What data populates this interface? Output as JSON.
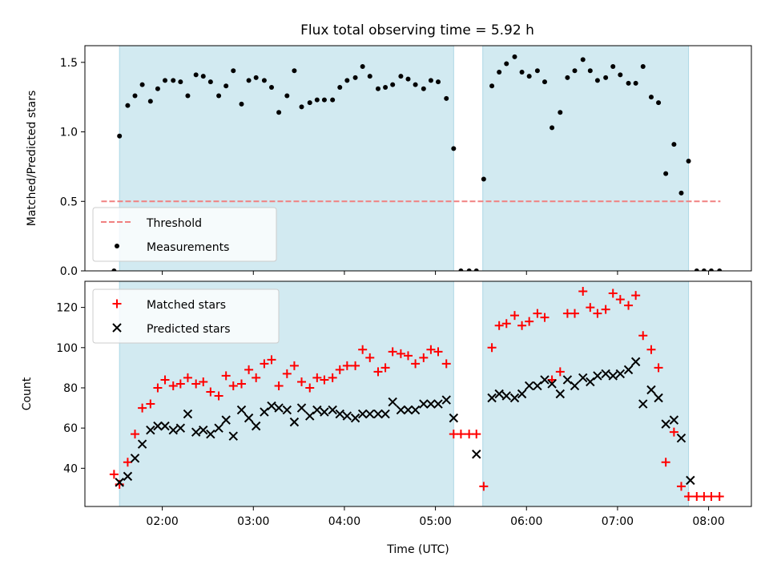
{
  "title": "Flux total observing time = 5.92 h",
  "colors": {
    "band": "#add8e6",
    "threshold": "#f08080",
    "measurements": "#000000",
    "matched": "#ff0000",
    "predicted": "#000000"
  },
  "chart_data": [
    {
      "type": "scatter",
      "panel": "top",
      "ylabel": "Matched/Predicted stars",
      "xlabel": "",
      "x_unit": "hours UTC",
      "xlim": [
        1.15,
        8.47
      ],
      "ylim": [
        0.0,
        1.62
      ],
      "xticks": [
        {
          "value": 2,
          "label": "02:00"
        },
        {
          "value": 3,
          "label": "03:00"
        },
        {
          "value": 4,
          "label": "04:00"
        },
        {
          "value": 5,
          "label": "05:00"
        },
        {
          "value": 6,
          "label": "06:00"
        },
        {
          "value": 7,
          "label": "07:00"
        },
        {
          "value": 8,
          "label": "08:00"
        }
      ],
      "yticks": [
        {
          "value": 0.0,
          "label": "0.0"
        },
        {
          "value": 0.5,
          "label": "0.5"
        },
        {
          "value": 1.0,
          "label": "1.0"
        },
        {
          "value": 1.5,
          "label": "1.5"
        }
      ],
      "show_xtick_labels": false,
      "bands": [
        [
          1.53,
          5.2
        ],
        [
          5.52,
          7.78
        ]
      ],
      "threshold": {
        "name": "Threshold",
        "value": 0.5,
        "x": [
          1.33,
          8.13
        ]
      },
      "legend": {
        "position": "lower-left",
        "entries": [
          "Threshold",
          "Measurements"
        ]
      },
      "series": [
        {
          "name": "Measurements",
          "points": [
            [
              1.47,
              0.0
            ],
            [
              1.53,
              0.97
            ],
            [
              1.62,
              1.19
            ],
            [
              1.7,
              1.26
            ],
            [
              1.78,
              1.34
            ],
            [
              1.87,
              1.22
            ],
            [
              1.95,
              1.31
            ],
            [
              2.03,
              1.37
            ],
            [
              2.12,
              1.37
            ],
            [
              2.2,
              1.36
            ],
            [
              2.28,
              1.26
            ],
            [
              2.37,
              1.41
            ],
            [
              2.45,
              1.4
            ],
            [
              2.53,
              1.36
            ],
            [
              2.62,
              1.26
            ],
            [
              2.7,
              1.33
            ],
            [
              2.78,
              1.44
            ],
            [
              2.87,
              1.2
            ],
            [
              2.95,
              1.37
            ],
            [
              3.03,
              1.39
            ],
            [
              3.12,
              1.37
            ],
            [
              3.2,
              1.32
            ],
            [
              3.28,
              1.14
            ],
            [
              3.37,
              1.26
            ],
            [
              3.45,
              1.44
            ],
            [
              3.53,
              1.18
            ],
            [
              3.62,
              1.21
            ],
            [
              3.7,
              1.23
            ],
            [
              3.78,
              1.23
            ],
            [
              3.87,
              1.23
            ],
            [
              3.95,
              1.32
            ],
            [
              4.03,
              1.37
            ],
            [
              4.12,
              1.39
            ],
            [
              4.2,
              1.47
            ],
            [
              4.28,
              1.4
            ],
            [
              4.37,
              1.31
            ],
            [
              4.45,
              1.32
            ],
            [
              4.53,
              1.34
            ],
            [
              4.62,
              1.4
            ],
            [
              4.7,
              1.38
            ],
            [
              4.78,
              1.34
            ],
            [
              4.87,
              1.31
            ],
            [
              4.95,
              1.37
            ],
            [
              5.03,
              1.36
            ],
            [
              5.12,
              1.24
            ],
            [
              5.2,
              0.88
            ],
            [
              5.28,
              0.0
            ],
            [
              5.37,
              0.0
            ],
            [
              5.45,
              0.0
            ],
            [
              5.53,
              0.66
            ],
            [
              5.62,
              1.33
            ],
            [
              5.7,
              1.43
            ],
            [
              5.78,
              1.49
            ],
            [
              5.87,
              1.54
            ],
            [
              5.95,
              1.43
            ],
            [
              6.03,
              1.4
            ],
            [
              6.12,
              1.44
            ],
            [
              6.2,
              1.36
            ],
            [
              6.28,
              1.03
            ],
            [
              6.37,
              1.14
            ],
            [
              6.45,
              1.39
            ],
            [
              6.53,
              1.44
            ],
            [
              6.62,
              1.52
            ],
            [
              6.7,
              1.44
            ],
            [
              6.78,
              1.37
            ],
            [
              6.87,
              1.39
            ],
            [
              6.95,
              1.47
            ],
            [
              7.03,
              1.41
            ],
            [
              7.12,
              1.35
            ],
            [
              7.2,
              1.35
            ],
            [
              7.28,
              1.47
            ],
            [
              7.37,
              1.25
            ],
            [
              7.45,
              1.21
            ],
            [
              7.53,
              0.7
            ],
            [
              7.62,
              0.91
            ],
            [
              7.7,
              0.56
            ],
            [
              7.78,
              0.79
            ],
            [
              7.87,
              0.0
            ],
            [
              7.95,
              0.0
            ],
            [
              8.03,
              0.0
            ],
            [
              8.12,
              0.0
            ]
          ]
        }
      ]
    },
    {
      "type": "scatter",
      "panel": "bottom",
      "ylabel": "Count",
      "xlabel": "Time (UTC)",
      "x_unit": "hours UTC",
      "xlim": [
        1.15,
        8.47
      ],
      "ylim": [
        21,
        133
      ],
      "xticks": [
        {
          "value": 2,
          "label": "02:00"
        },
        {
          "value": 3,
          "label": "03:00"
        },
        {
          "value": 4,
          "label": "04:00"
        },
        {
          "value": 5,
          "label": "05:00"
        },
        {
          "value": 6,
          "label": "06:00"
        },
        {
          "value": 7,
          "label": "07:00"
        },
        {
          "value": 8,
          "label": "08:00"
        }
      ],
      "yticks": [
        {
          "value": 40,
          "label": "40"
        },
        {
          "value": 60,
          "label": "60"
        },
        {
          "value": 80,
          "label": "80"
        },
        {
          "value": 100,
          "label": "100"
        },
        {
          "value": 120,
          "label": "120"
        }
      ],
      "show_xtick_labels": true,
      "bands": [
        [
          1.53,
          5.2
        ],
        [
          5.52,
          7.78
        ]
      ],
      "legend": {
        "position": "upper-left",
        "entries": [
          "Matched stars",
          "Predicted stars"
        ]
      },
      "series": [
        {
          "name": "Matched stars",
          "marker": "plus",
          "points": [
            [
              1.47,
              37
            ],
            [
              1.53,
              32
            ],
            [
              1.62,
              43
            ],
            [
              1.7,
              57
            ],
            [
              1.78,
              70
            ],
            [
              1.87,
              72
            ],
            [
              1.95,
              80
            ],
            [
              2.03,
              84
            ],
            [
              2.12,
              81
            ],
            [
              2.2,
              82
            ],
            [
              2.28,
              85
            ],
            [
              2.37,
              82
            ],
            [
              2.45,
              83
            ],
            [
              2.53,
              78
            ],
            [
              2.62,
              76
            ],
            [
              2.7,
              86
            ],
            [
              2.78,
              81
            ],
            [
              2.87,
              82
            ],
            [
              2.95,
              89
            ],
            [
              3.03,
              85
            ],
            [
              3.12,
              92
            ],
            [
              3.2,
              94
            ],
            [
              3.28,
              81
            ],
            [
              3.37,
              87
            ],
            [
              3.45,
              91
            ],
            [
              3.53,
              83
            ],
            [
              3.62,
              80
            ],
            [
              3.7,
              85
            ],
            [
              3.78,
              84
            ],
            [
              3.87,
              85
            ],
            [
              3.95,
              89
            ],
            [
              4.03,
              91
            ],
            [
              4.12,
              91
            ],
            [
              4.2,
              99
            ],
            [
              4.28,
              95
            ],
            [
              4.37,
              88
            ],
            [
              4.45,
              90
            ],
            [
              4.53,
              98
            ],
            [
              4.62,
              97
            ],
            [
              4.7,
              96
            ],
            [
              4.78,
              92
            ],
            [
              4.87,
              95
            ],
            [
              4.95,
              99
            ],
            [
              5.03,
              98
            ],
            [
              5.12,
              92
            ],
            [
              5.2,
              57
            ],
            [
              5.28,
              57
            ],
            [
              5.37,
              57
            ],
            [
              5.45,
              57
            ],
            [
              5.53,
              31
            ],
            [
              5.62,
              100
            ],
            [
              5.7,
              111
            ],
            [
              5.78,
              112
            ],
            [
              5.87,
              116
            ],
            [
              5.95,
              111
            ],
            [
              6.03,
              113
            ],
            [
              6.12,
              117
            ],
            [
              6.2,
              115
            ],
            [
              6.28,
              84
            ],
            [
              6.37,
              88
            ],
            [
              6.45,
              117
            ],
            [
              6.53,
              117
            ],
            [
              6.62,
              128
            ],
            [
              6.7,
              120
            ],
            [
              6.78,
              117
            ],
            [
              6.87,
              119
            ],
            [
              6.95,
              127
            ],
            [
              7.03,
              124
            ],
            [
              7.12,
              121
            ],
            [
              7.2,
              126
            ],
            [
              7.28,
              106
            ],
            [
              7.37,
              99
            ],
            [
              7.45,
              90
            ],
            [
              7.53,
              43
            ],
            [
              7.62,
              58
            ],
            [
              7.7,
              31
            ],
            [
              7.78,
              26
            ],
            [
              7.87,
              26
            ],
            [
              7.95,
              26
            ],
            [
              8.03,
              26
            ],
            [
              8.12,
              26
            ]
          ]
        },
        {
          "name": "Predicted stars",
          "marker": "x",
          "points": [
            [
              1.53,
              33
            ],
            [
              1.62,
              36
            ],
            [
              1.7,
              45
            ],
            [
              1.78,
              52
            ],
            [
              1.87,
              59
            ],
            [
              1.95,
              61
            ],
            [
              2.03,
              61
            ],
            [
              2.12,
              59
            ],
            [
              2.2,
              60
            ],
            [
              2.28,
              67
            ],
            [
              2.37,
              58
            ],
            [
              2.45,
              59
            ],
            [
              2.53,
              57
            ],
            [
              2.62,
              60
            ],
            [
              2.7,
              64
            ],
            [
              2.78,
              56
            ],
            [
              2.87,
              69
            ],
            [
              2.95,
              65
            ],
            [
              3.03,
              61
            ],
            [
              3.12,
              68
            ],
            [
              3.2,
              71
            ],
            [
              3.28,
              70
            ],
            [
              3.37,
              69
            ],
            [
              3.45,
              63
            ],
            [
              3.53,
              70
            ],
            [
              3.62,
              66
            ],
            [
              3.7,
              69
            ],
            [
              3.78,
              68
            ],
            [
              3.87,
              69
            ],
            [
              3.95,
              67
            ],
            [
              4.03,
              66
            ],
            [
              4.12,
              65
            ],
            [
              4.2,
              67
            ],
            [
              4.28,
              67
            ],
            [
              4.37,
              67
            ],
            [
              4.45,
              67
            ],
            [
              4.53,
              73
            ],
            [
              4.62,
              69
            ],
            [
              4.7,
              69
            ],
            [
              4.78,
              69
            ],
            [
              4.87,
              72
            ],
            [
              4.95,
              72
            ],
            [
              5.03,
              72
            ],
            [
              5.12,
              74
            ],
            [
              5.2,
              65
            ],
            [
              5.45,
              47
            ],
            [
              5.62,
              75
            ],
            [
              5.7,
              77
            ],
            [
              5.78,
              76
            ],
            [
              5.87,
              75
            ],
            [
              5.95,
              77
            ],
            [
              6.03,
              81
            ],
            [
              6.12,
              81
            ],
            [
              6.2,
              84
            ],
            [
              6.28,
              82
            ],
            [
              6.37,
              77
            ],
            [
              6.45,
              84
            ],
            [
              6.53,
              81
            ],
            [
              6.62,
              85
            ],
            [
              6.7,
              83
            ],
            [
              6.78,
              86
            ],
            [
              6.87,
              87
            ],
            [
              6.95,
              86
            ],
            [
              7.03,
              87
            ],
            [
              7.12,
              89
            ],
            [
              7.2,
              93
            ],
            [
              7.28,
              72
            ],
            [
              7.37,
              79
            ],
            [
              7.45,
              75
            ],
            [
              7.53,
              62
            ],
            [
              7.62,
              64
            ],
            [
              7.7,
              55
            ],
            [
              7.8,
              34
            ]
          ]
        }
      ]
    }
  ]
}
